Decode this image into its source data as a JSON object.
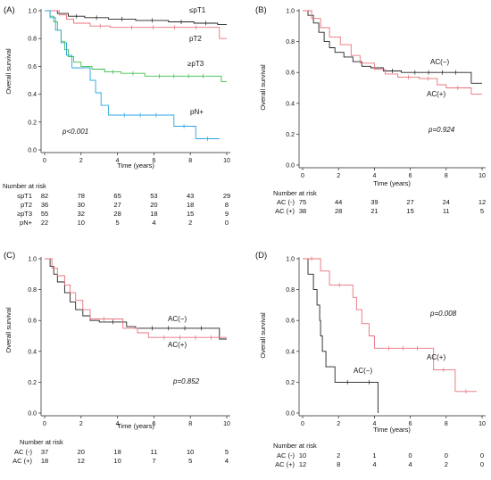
{
  "chart_data": [
    {
      "type": "line",
      "panel_label": "(A)",
      "xlabel": "Time (years)",
      "ylabel": "Overall survival",
      "xlim": [
        0,
        10
      ],
      "ylim": [
        0,
        1
      ],
      "x_ticks": [
        "0",
        "2",
        "4",
        "6",
        "8",
        "10"
      ],
      "y_ticks": [
        "0.0",
        "0.2",
        "0.4",
        "0.6",
        "0.8",
        "1.0"
      ],
      "annotation": "p<0.001",
      "series": [
        {
          "name": "≤pT1",
          "color": "#222222",
          "points": [
            [
              0,
              1
            ],
            [
              0.7,
              0.98
            ],
            [
              1.3,
              0.96
            ],
            [
              2.2,
              0.95
            ],
            [
              3.5,
              0.94
            ],
            [
              5,
              0.93
            ],
            [
              6.8,
              0.92
            ],
            [
              8.2,
              0.91
            ],
            [
              9.5,
              0.9
            ],
            [
              10,
              0.9
            ]
          ]
        },
        {
          "name": "pT2",
          "color": "#e8707a",
          "points": [
            [
              0,
              1
            ],
            [
              0.8,
              0.97
            ],
            [
              1.2,
              0.94
            ],
            [
              1.6,
              0.91
            ],
            [
              2.5,
              0.89
            ],
            [
              3.6,
              0.88
            ],
            [
              9.5,
              0.88
            ],
            [
              9.6,
              0.8
            ],
            [
              10,
              0.8
            ]
          ]
        },
        {
          "name": "≥pT3",
          "color": "#3cbf4a",
          "points": [
            [
              0,
              1
            ],
            [
              0.3,
              0.96
            ],
            [
              0.5,
              0.92
            ],
            [
              0.7,
              0.86
            ],
            [
              0.9,
              0.78
            ],
            [
              1.1,
              0.72
            ],
            [
              1.3,
              0.67
            ],
            [
              1.6,
              0.63
            ],
            [
              2.0,
              0.6
            ],
            [
              2.6,
              0.58
            ],
            [
              3.3,
              0.56
            ],
            [
              4.2,
              0.55
            ],
            [
              5.5,
              0.53
            ],
            [
              9.5,
              0.53
            ],
            [
              9.7,
              0.49
            ],
            [
              10,
              0.49
            ]
          ]
        },
        {
          "name": "pN+",
          "color": "#2aa6e0",
          "points": [
            [
              0,
              1
            ],
            [
              0.3,
              0.95
            ],
            [
              0.6,
              0.86
            ],
            [
              0.9,
              0.77
            ],
            [
              1.2,
              0.68
            ],
            [
              1.5,
              0.59
            ],
            [
              2.3,
              0.59
            ],
            [
              2.5,
              0.5
            ],
            [
              2.8,
              0.41
            ],
            [
              3.1,
              0.32
            ],
            [
              3.5,
              0.25
            ],
            [
              7.0,
              0.25
            ],
            [
              7.1,
              0.17
            ],
            [
              8.2,
              0.17
            ],
            [
              8.3,
              0.08
            ],
            [
              9.6,
              0.08
            ]
          ]
        }
      ],
      "risk_table": {
        "title": "Number at risk",
        "rows": [
          {
            "label": "≤pT1",
            "values": [
              "82",
              "78",
              "65",
              "53",
              "43",
              "29"
            ]
          },
          {
            "label": "pT2",
            "values": [
              "36",
              "30",
              "27",
              "20",
              "18",
              "8"
            ]
          },
          {
            "label": "≥pT3",
            "values": [
              "55",
              "32",
              "28",
              "18",
              "15",
              "9"
            ]
          },
          {
            "label": "pN+",
            "values": [
              "22",
              "10",
              "5",
              "4",
              "2",
              "0"
            ]
          }
        ]
      }
    },
    {
      "type": "line",
      "panel_label": "(B)",
      "xlabel": "Time (years)",
      "ylabel": "Overall survival",
      "xlim": [
        0,
        10
      ],
      "ylim": [
        0,
        1
      ],
      "x_ticks": [
        "0",
        "2",
        "4",
        "6",
        "8",
        "10"
      ],
      "y_ticks": [
        "0.0",
        "0.2",
        "0.4",
        "0.6",
        "0.8",
        "1.0"
      ],
      "annotation": "p=0.924",
      "series": [
        {
          "name": "AC(−)",
          "color": "#222222",
          "points": [
            [
              0,
              1
            ],
            [
              0.3,
              0.97
            ],
            [
              0.6,
              0.92
            ],
            [
              0.9,
              0.86
            ],
            [
              1.2,
              0.8
            ],
            [
              1.5,
              0.76
            ],
            [
              1.8,
              0.73
            ],
            [
              2.3,
              0.7
            ],
            [
              2.8,
              0.67
            ],
            [
              3.3,
              0.64
            ],
            [
              3.8,
              0.63
            ],
            [
              4.5,
              0.61
            ],
            [
              5.5,
              0.6
            ],
            [
              9.3,
              0.6
            ],
            [
              9.4,
              0.53
            ],
            [
              10,
              0.53
            ]
          ]
        },
        {
          "name": "AC(+)",
          "color": "#e8707a",
          "points": [
            [
              0,
              1
            ],
            [
              0.5,
              0.95
            ],
            [
              1.0,
              0.89
            ],
            [
              1.5,
              0.83
            ],
            [
              2.1,
              0.78
            ],
            [
              2.7,
              0.71
            ],
            [
              3.2,
              0.66
            ],
            [
              4.0,
              0.62
            ],
            [
              4.6,
              0.59
            ],
            [
              5.3,
              0.57
            ],
            [
              6.5,
              0.56
            ],
            [
              7.5,
              0.52
            ],
            [
              8.0,
              0.5
            ],
            [
              9.3,
              0.5
            ],
            [
              9.4,
              0.46
            ],
            [
              10,
              0.46
            ]
          ]
        }
      ],
      "risk_table": {
        "title": "Number at risk",
        "rows": [
          {
            "label": "AC (-)",
            "values": [
              "75",
              "44",
              "39",
              "27",
              "24",
              "12"
            ]
          },
          {
            "label": "AC (+)",
            "values": [
              "38",
              "28",
              "21",
              "15",
              "11",
              "5"
            ]
          }
        ]
      }
    },
    {
      "type": "line",
      "panel_label": "(C)",
      "xlabel": "Time (years)",
      "ylabel": "Overall survival",
      "xlim": [
        0,
        10
      ],
      "ylim": [
        0,
        1
      ],
      "x_ticks": [
        "0",
        "2",
        "4",
        "6",
        "8",
        "10"
      ],
      "y_ticks": [
        "0.0",
        "0.2",
        "0.4",
        "0.6",
        "0.8",
        "1.0"
      ],
      "annotation": "p=0.852",
      "series": [
        {
          "name": "AC(−)",
          "color": "#222222",
          "points": [
            [
              0,
              1
            ],
            [
              0.3,
              0.95
            ],
            [
              0.5,
              0.9
            ],
            [
              0.7,
              0.85
            ],
            [
              1.1,
              0.78
            ],
            [
              1.4,
              0.72
            ],
            [
              1.7,
              0.67
            ],
            [
              2.1,
              0.63
            ],
            [
              2.5,
              0.6
            ],
            [
              3.0,
              0.59
            ],
            [
              4.5,
              0.56
            ],
            [
              5.0,
              0.55
            ],
            [
              9.5,
              0.55
            ],
            [
              9.6,
              0.48
            ],
            [
              10,
              0.48
            ]
          ]
        },
        {
          "name": "AC(+)",
          "color": "#e8707a",
          "points": [
            [
              0,
              1
            ],
            [
              0.4,
              0.94
            ],
            [
              0.7,
              0.89
            ],
            [
              1.1,
              0.83
            ],
            [
              1.4,
              0.78
            ],
            [
              1.7,
              0.73
            ],
            [
              2.1,
              0.67
            ],
            [
              2.5,
              0.61
            ],
            [
              4.0,
              0.61
            ],
            [
              4.3,
              0.55
            ],
            [
              5.1,
              0.52
            ],
            [
              5.7,
              0.49
            ],
            [
              10,
              0.49
            ]
          ]
        }
      ],
      "risk_table": {
        "title": "Number at risk",
        "rows": [
          {
            "label": "AC (-)",
            "values": [
              "37",
              "20",
              "18",
              "11",
              "10",
              "5"
            ]
          },
          {
            "label": "AC (+)",
            "values": [
              "18",
              "12",
              "10",
              "7",
              "5",
              "4"
            ]
          }
        ]
      }
    },
    {
      "type": "line",
      "panel_label": "(D)",
      "xlabel": "Time (years)",
      "ylabel": "Overall survival",
      "xlim": [
        0,
        10
      ],
      "ylim": [
        0,
        1
      ],
      "x_ticks": [
        "0",
        "2",
        "4",
        "6",
        "8",
        "10"
      ],
      "y_ticks": [
        "0.0",
        "0.2",
        "0.4",
        "0.6",
        "0.8",
        "1.0"
      ],
      "annotation": "p=0.008",
      "series": [
        {
          "name": "AC(−)",
          "color": "#222222",
          "points": [
            [
              0,
              1
            ],
            [
              0.3,
              0.9
            ],
            [
              0.6,
              0.8
            ],
            [
              0.8,
              0.7
            ],
            [
              0.95,
              0.6
            ],
            [
              1.0,
              0.5
            ],
            [
              1.1,
              0.4
            ],
            [
              1.3,
              0.3
            ],
            [
              1.8,
              0.2
            ],
            [
              3.2,
              0.2
            ],
            [
              4.2,
              0.2
            ],
            [
              4.2,
              0.0
            ]
          ]
        },
        {
          "name": "AC(+)",
          "color": "#e8707a",
          "points": [
            [
              0,
              1
            ],
            [
              1.0,
              1.0
            ],
            [
              1.0,
              0.92
            ],
            [
              1.5,
              0.83
            ],
            [
              2.6,
              0.83
            ],
            [
              2.8,
              0.75
            ],
            [
              3.0,
              0.67
            ],
            [
              3.3,
              0.58
            ],
            [
              3.7,
              0.5
            ],
            [
              4.0,
              0.42
            ],
            [
              7.2,
              0.42
            ],
            [
              7.3,
              0.28
            ],
            [
              8.4,
              0.28
            ],
            [
              8.5,
              0.14
            ],
            [
              9.7,
              0.14
            ]
          ]
        }
      ],
      "risk_table": {
        "title": "Number at risk",
        "rows": [
          {
            "label": "AC (-)",
            "values": [
              "10",
              "2",
              "1",
              "0",
              "0",
              "0"
            ]
          },
          {
            "label": "AC (+)",
            "values": [
              "12",
              "8",
              "4",
              "4",
              "2",
              "0"
            ]
          }
        ]
      }
    }
  ]
}
